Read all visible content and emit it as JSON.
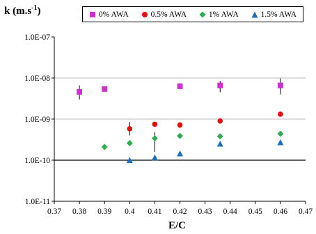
{
  "chart_data": {
    "type": "scatter",
    "ylabel_base": "k (m.s",
    "ylabel_exp": "-1",
    "ylabel_close": ")",
    "xlabel": "E/C",
    "xlim": [
      0.37,
      0.47
    ],
    "ylim": [
      1e-11,
      1e-07
    ],
    "yscale": "log",
    "x_ticks": [
      "0.37",
      "0.38",
      "0.39",
      "0.4",
      "0.41",
      "0.42",
      "0.43",
      "0.44",
      "0.45",
      "0.46",
      "0.47"
    ],
    "y_ticks": [
      "1.0E-11",
      "1.0E-10",
      "1.0E-09",
      "1.0E-08",
      "1.0E-07"
    ],
    "grid": "horizontal",
    "legend_position": "top",
    "series": [
      {
        "name": "0% AWA",
        "marker": "square",
        "color": "#cc33cc",
        "points": [
          {
            "x": 0.38,
            "y": 4.6e-09,
            "err_lo": 3e-09,
            "err_hi": 6.6e-09
          },
          {
            "x": 0.39,
            "y": 5.4e-09
          },
          {
            "x": 0.42,
            "y": 6.3e-09,
            "err_lo": 5.3e-09,
            "err_hi": 7.5e-09
          },
          {
            "x": 0.436,
            "y": 6.6e-09,
            "err_lo": 4.5e-09,
            "err_hi": 8.5e-09
          },
          {
            "x": 0.46,
            "y": 6.6e-09,
            "err_lo": 4e-09,
            "err_hi": 9.8e-09
          }
        ]
      },
      {
        "name": "0.5% AWA",
        "marker": "circle",
        "color": "#dd1111",
        "points": [
          {
            "x": 0.4,
            "y": 5.8e-10,
            "err_lo": 4e-10,
            "err_hi": 8.5e-10
          },
          {
            "x": 0.41,
            "y": 7.5e-10
          },
          {
            "x": 0.42,
            "y": 7.2e-10,
            "err_lo": 6e-10,
            "err_hi": 8.3e-10
          },
          {
            "x": 0.436,
            "y": 9e-10
          },
          {
            "x": 0.46,
            "y": 1.32e-09
          }
        ]
      },
      {
        "name": "1% AWA",
        "marker": "diamond",
        "color": "#33aa55",
        "points": [
          {
            "x": 0.39,
            "y": 2.1e-10
          },
          {
            "x": 0.4,
            "y": 2.6e-10
          },
          {
            "x": 0.41,
            "y": 3.4e-10,
            "err_lo": 1.6e-10,
            "err_hi": 4.8e-10
          },
          {
            "x": 0.42,
            "y": 3.9e-10
          },
          {
            "x": 0.436,
            "y": 3.8e-10
          },
          {
            "x": 0.46,
            "y": 4.4e-10
          }
        ]
      },
      {
        "name": "1.5% AWA",
        "marker": "triangle",
        "color": "#1f6fb2",
        "points": [
          {
            "x": 0.4,
            "y": 1e-10
          },
          {
            "x": 0.41,
            "y": 1.15e-10
          },
          {
            "x": 0.42,
            "y": 1.45e-10
          },
          {
            "x": 0.436,
            "y": 2.5e-10
          },
          {
            "x": 0.46,
            "y": 2.7e-10
          }
        ]
      }
    ]
  }
}
